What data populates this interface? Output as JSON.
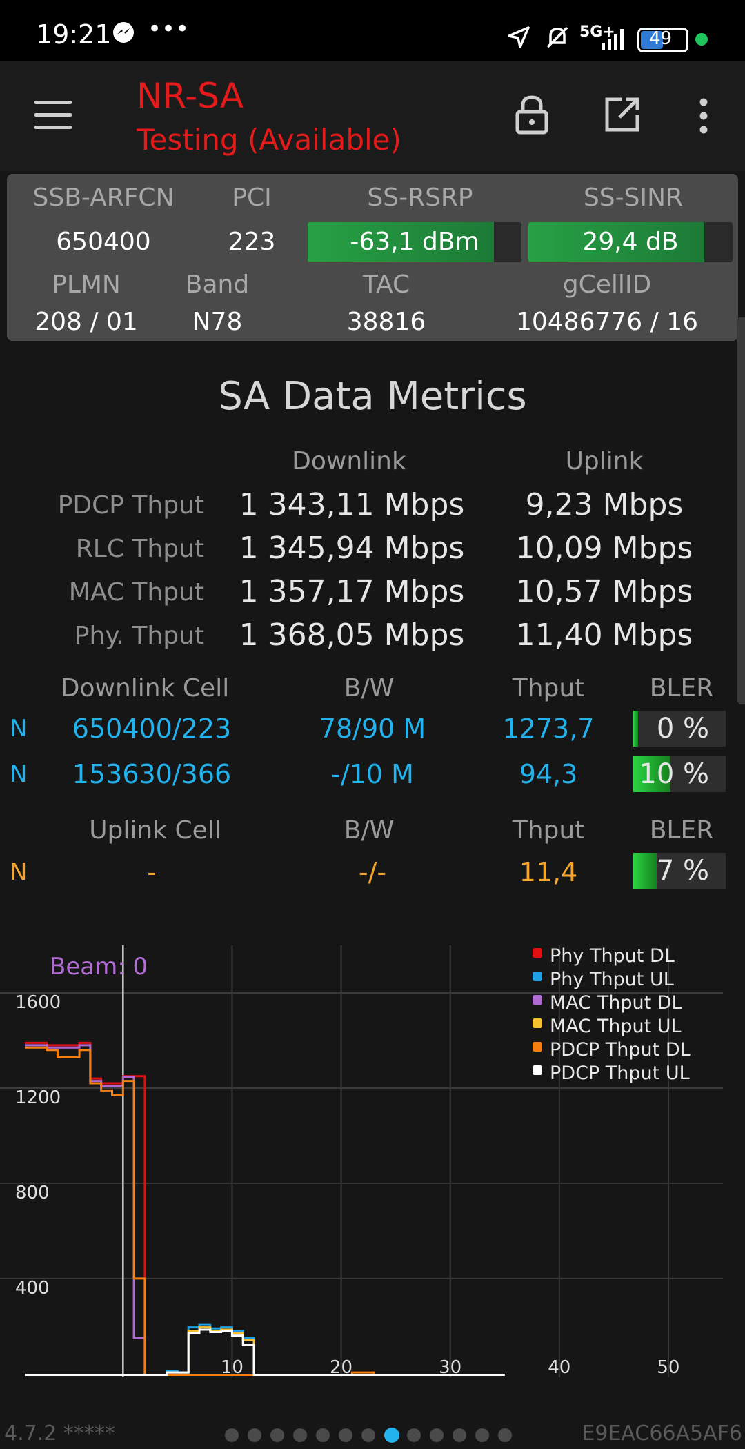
{
  "status_bar": {
    "time": "19:21",
    "battery": "49",
    "network": "5G+",
    "icons": [
      "messenger-icon",
      "more-icon",
      "location-icon",
      "mute-icon",
      "signal-icon",
      "battery-icon"
    ]
  },
  "app_bar": {
    "title": "NR-SA",
    "subtitle": "Testing (Available)",
    "icons": [
      "menu-icon",
      "lock-icon",
      "open-external-icon",
      "more-vert-icon"
    ]
  },
  "cell_info": {
    "headers": [
      "SSB-ARFCN",
      "PCI",
      "SS-RSRP",
      "SS-SINR"
    ],
    "ssb_arfcn": "650400",
    "pci": "223",
    "rsrp": {
      "text": "-63,1 dBm",
      "level": 0.87
    },
    "sinr": {
      "text": "29,4 dB",
      "level": 0.86
    },
    "headers2": [
      "PLMN",
      "Band",
      "TAC",
      "gCellID"
    ],
    "plmn": "208 / 01",
    "band": "N78",
    "tac": "38816",
    "gcellid": "10486776 / 16"
  },
  "metrics": {
    "title": "SA Data Metrics",
    "col_downlink": "Downlink",
    "col_uplink": "Uplink",
    "rows": [
      {
        "label": "PDCP Thput",
        "dl": "1 343,11 Mbps",
        "ul": "9,23 Mbps"
      },
      {
        "label": "RLC Thput",
        "dl": "1 345,94 Mbps",
        "ul": "10,09 Mbps"
      },
      {
        "label": "MAC Thput",
        "dl": "1 357,17 Mbps",
        "ul": "10,57 Mbps"
      },
      {
        "label": "Phy. Thput",
        "dl": "1 368,05 Mbps",
        "ul": "11,40 Mbps"
      }
    ]
  },
  "downlink_cells": {
    "headers": [
      "Downlink Cell",
      "B/W",
      "Thput",
      "BLER"
    ],
    "rows": [
      {
        "tech": "N",
        "cell": "650400/223",
        "bw": "78/90 M",
        "thput": "1273,7",
        "bler": "0 %",
        "bler_level": 0.05
      },
      {
        "tech": "N",
        "cell": "153630/366",
        "bw": "-/10 M",
        "thput": "94,3",
        "bler": "10 %",
        "bler_level": 0.4
      }
    ]
  },
  "uplink_cells": {
    "headers": [
      "Uplink Cell",
      "B/W",
      "Thput",
      "BLER"
    ],
    "rows": [
      {
        "tech": "N",
        "cell": "-",
        "bw": "-/-",
        "thput": "11,4",
        "bler": "7 %",
        "bler_level": 0.25
      }
    ]
  },
  "chart_data": {
    "type": "line",
    "annotation": "Beam: 0",
    "x_ticks": [
      "10",
      "20",
      "30",
      "40",
      "50"
    ],
    "y_ticks": [
      "400",
      "800",
      "1200",
      "1600"
    ],
    "xlim": [
      -9,
      55
    ],
    "ylim": [
      -15,
      1800
    ],
    "grid": true,
    "legend_position": "top-right",
    "series": [
      {
        "name": "Phy Thput DL",
        "color": "#e01010",
        "x": [
          -9,
          -7,
          -6,
          -4,
          -3,
          -2,
          -1,
          0,
          1,
          2,
          3
        ],
        "y": [
          1390,
          1380,
          1380,
          1390,
          1240,
          1220,
          1220,
          1250,
          1250,
          -5,
          -5
        ]
      },
      {
        "name": "Phy Thput UL",
        "color": "#22a0e6",
        "x": [
          -9,
          -1,
          0,
          1,
          2,
          3,
          4,
          5,
          6,
          7,
          8,
          9,
          10,
          11,
          12
        ],
        "y": [
          -5,
          -5,
          -5,
          -5,
          -5,
          -5,
          10,
          5,
          195,
          205,
          190,
          195,
          180,
          150,
          -5
        ]
      },
      {
        "name": "MAC Thput DL",
        "color": "#b06ad4",
        "x": [
          -9,
          -7,
          -6,
          -4,
          -3,
          -2,
          -1,
          0,
          1,
          2,
          3
        ],
        "y": [
          1380,
          1370,
          1370,
          1380,
          1230,
          1210,
          1210,
          1245,
          150,
          -5,
          -5
        ]
      },
      {
        "name": "MAC Thput UL",
        "color": "#f7c22e",
        "x": [
          -9,
          -1,
          0,
          1,
          2,
          3,
          4,
          5,
          6,
          7,
          8,
          9,
          10,
          11,
          12
        ],
        "y": [
          -5,
          -5,
          -5,
          -5,
          -5,
          -5,
          5,
          5,
          180,
          195,
          180,
          185,
          170,
          140,
          -5
        ]
      },
      {
        "name": "PDCP Thput DL",
        "color": "#f77f10",
        "x": [
          -9,
          -7,
          -6,
          -4,
          -3,
          -2,
          -1,
          0,
          1,
          2,
          3,
          20,
          21,
          22,
          23
        ],
        "y": [
          1370,
          1360,
          1330,
          1360,
          1220,
          1190,
          1170,
          1230,
          400,
          -5,
          -5,
          -5,
          5,
          5,
          -5
        ]
      },
      {
        "name": "PDCP Thput UL",
        "color": "#ffffff",
        "x": [
          -9,
          -1,
          0,
          1,
          2,
          3,
          4,
          5,
          6,
          7,
          8,
          9,
          10,
          11,
          12,
          35
        ],
        "y": [
          -5,
          -5,
          -5,
          -5,
          -5,
          -5,
          5,
          5,
          170,
          185,
          175,
          180,
          160,
          120,
          -5,
          -5
        ]
      }
    ]
  },
  "footer": {
    "version": "4.7.2 *****",
    "device_id": "E9EAC66A5AF6",
    "page_count": 13,
    "active_page": 7
  }
}
